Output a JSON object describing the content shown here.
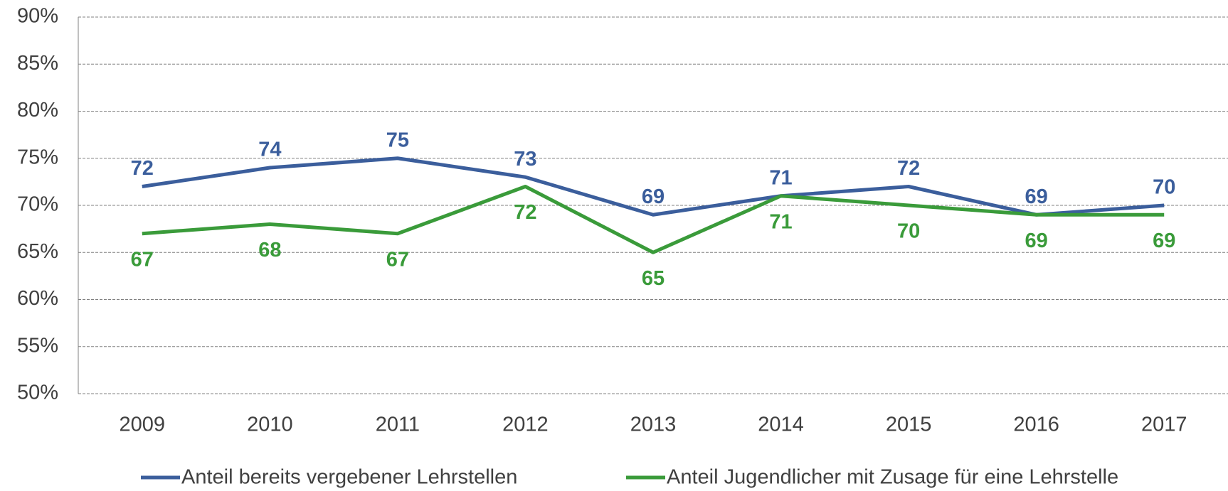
{
  "chart_data": {
    "type": "line",
    "categories": [
      "2009",
      "2010",
      "2011",
      "2012",
      "2013",
      "2014",
      "2015",
      "2016",
      "2017"
    ],
    "series": [
      {
        "name": "Anteil bereits vergebener Lehrstellen",
        "color": "#3b5e9c",
        "values": [
          72,
          74,
          75,
          73,
          69,
          71,
          72,
          69,
          70
        ]
      },
      {
        "name": "Anteil Jugendlicher mit Zusage für eine Lehrstelle",
        "color": "#3a9b3a",
        "values": [
          67,
          68,
          67,
          72,
          65,
          71,
          70,
          69,
          69
        ]
      }
    ],
    "ylim": [
      50,
      90
    ],
    "yticks": [
      {
        "value": 50,
        "label": "50%"
      },
      {
        "value": 55,
        "label": "55%"
      },
      {
        "value": 60,
        "label": "60%"
      },
      {
        "value": 65,
        "label": "65%"
      },
      {
        "value": 70,
        "label": "70%"
      },
      {
        "value": 75,
        "label": "75%"
      },
      {
        "value": 80,
        "label": "80%"
      },
      {
        "value": 85,
        "label": "85%"
      },
      {
        "value": 90,
        "label": "90%"
      }
    ],
    "grid": true,
    "legend": "bottom"
  }
}
